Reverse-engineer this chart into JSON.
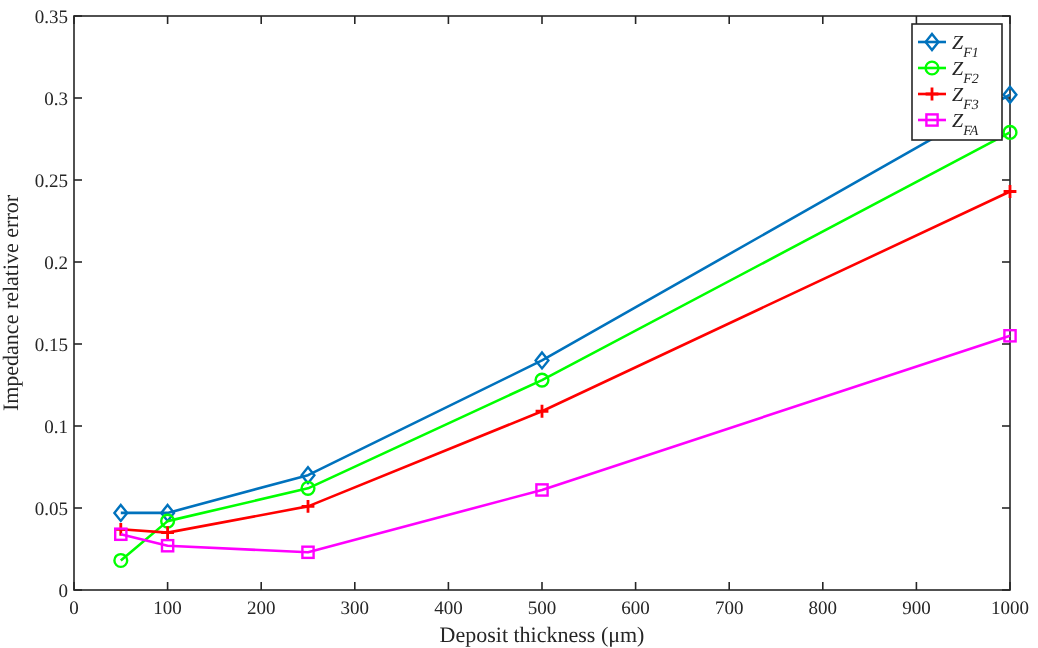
{
  "chart_data": {
    "type": "line",
    "xlabel": "Deposit thickness (μm)",
    "ylabel": "Impedance relative error",
    "x": [
      50,
      100,
      250,
      500,
      1000
    ],
    "series": [
      {
        "name": "Z$_{F1}$",
        "color": "#0072bd",
        "marker": "diamond",
        "values": [
          0.047,
          0.047,
          0.07,
          0.14,
          0.302
        ]
      },
      {
        "name": "Z$_{F2}$",
        "color": "#00ff00",
        "marker": "circle",
        "values": [
          0.018,
          0.042,
          0.062,
          0.128,
          0.279
        ]
      },
      {
        "name": "Z$_{F3}$",
        "color": "#ff0000",
        "marker": "cross",
        "values": [
          0.037,
          0.035,
          0.051,
          0.109,
          0.243
        ]
      },
      {
        "name": "Z$_{FA}$",
        "color": "#ff00ff",
        "marker": "square",
        "values": [
          0.034,
          0.027,
          0.023,
          0.061,
          0.155
        ]
      }
    ],
    "xlim": [
      0,
      1000
    ],
    "xticks": [
      0,
      100,
      200,
      300,
      400,
      500,
      600,
      700,
      800,
      900,
      1000
    ],
    "ylim": [
      0,
      0.35
    ],
    "yticks": [
      0,
      0.05,
      0.1,
      0.15,
      0.2,
      0.25,
      0.3,
      0.35
    ],
    "grid": false,
    "legend": "top right",
    "line_style": "solid"
  }
}
